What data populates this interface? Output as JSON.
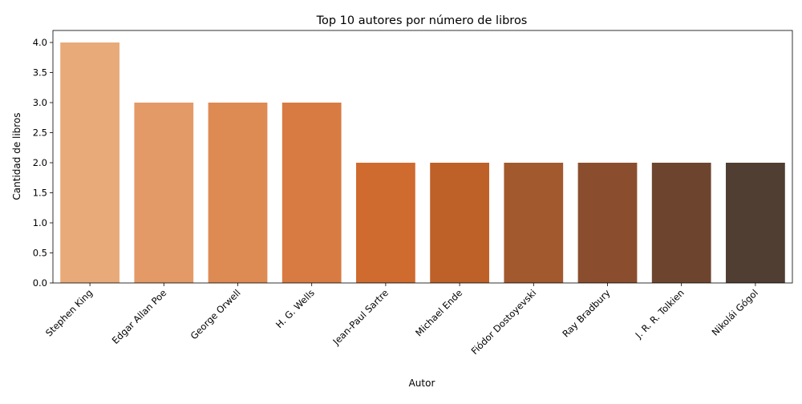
{
  "chart_data": {
    "type": "bar",
    "title": "Top 10 autores por número de libros",
    "xlabel": "Autor",
    "ylabel": "Cantidad de libros",
    "categories": [
      "Stephen King",
      "Edgar Allan Poe",
      "George Orwell",
      "H. G. Wells",
      "Jean-Paul Sartre",
      "Michael Ende",
      "Fiódor Dostoyevski",
      "Ray Bradbury",
      "J. R. R. Tolkien",
      "Nikolái Gógol"
    ],
    "values": [
      4,
      3,
      3,
      3,
      2,
      2,
      2,
      2,
      2,
      2
    ],
    "colors": [
      "#e8aa79",
      "#e39a66",
      "#de8a53",
      "#d87b42",
      "#cf6b2f",
      "#bd6128",
      "#a2592e",
      "#8a4e2e",
      "#6d452f",
      "#4f3e31"
    ],
    "ylim": [
      0,
      4.2
    ],
    "yticks": [
      "0.0",
      "0.5",
      "1.0",
      "1.5",
      "2.0",
      "2.5",
      "3.0",
      "3.5",
      "4.0"
    ],
    "grid": false,
    "legend": false
  }
}
